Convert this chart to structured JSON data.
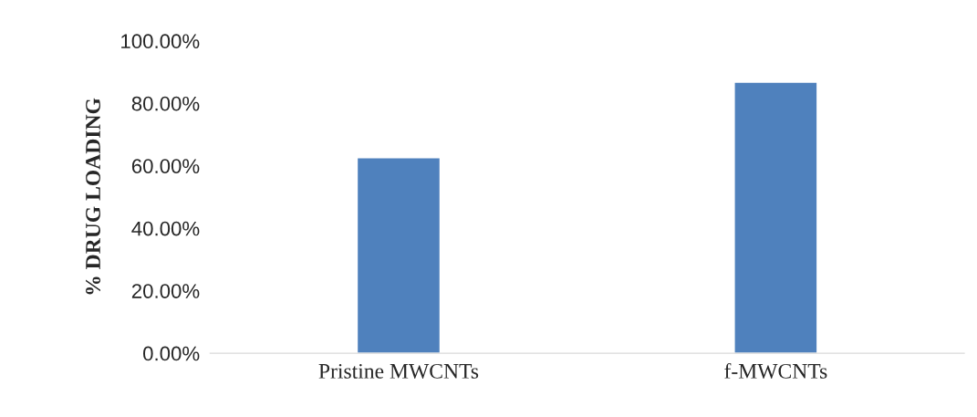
{
  "chart_data": {
    "type": "bar",
    "ylabel": "% DRUG LOADING",
    "categories": [
      "Pristine MWCNTs",
      "f-MWCNTs"
    ],
    "values": [
      62.6,
      86.8
    ],
    "color": "#4f81bd",
    "ylim": [
      0,
      100
    ],
    "yticks": [
      {
        "value": 0,
        "label": "0.00%"
      },
      {
        "value": 20,
        "label": "20.00%"
      },
      {
        "value": 40,
        "label": "40.00%"
      },
      {
        "value": 60,
        "label": "60.00%"
      },
      {
        "value": 80,
        "label": "80.00%"
      },
      {
        "value": 100,
        "label": "100.00%"
      }
    ],
    "grid": false,
    "legend": false
  }
}
